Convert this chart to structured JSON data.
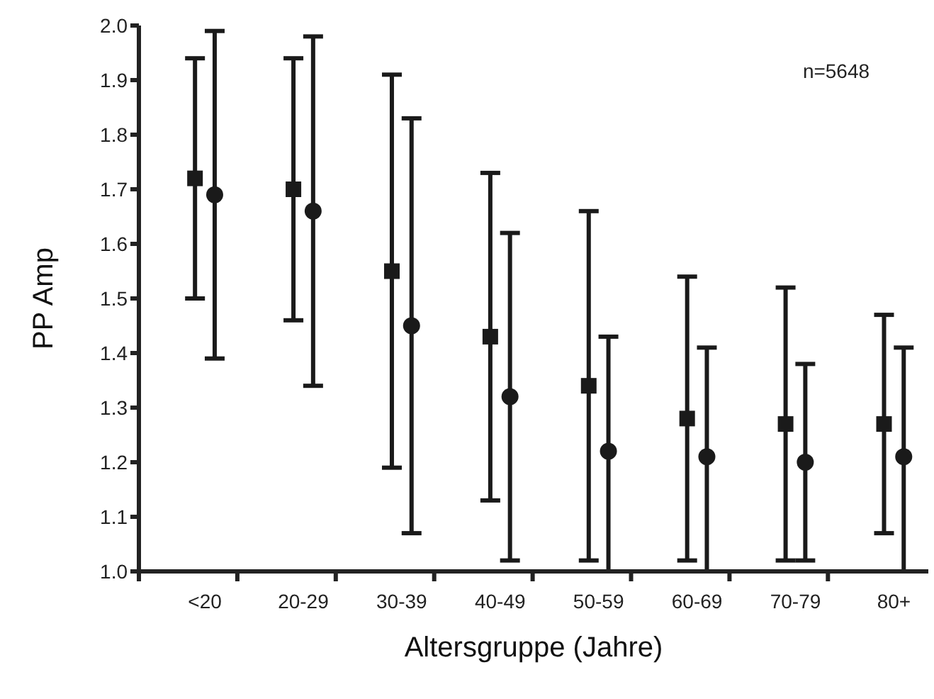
{
  "chart_data": {
    "type": "scatter",
    "xlabel": "Altersgruppe (Jahre)",
    "ylabel": "PP Amp",
    "annotations": [
      "n=5648"
    ],
    "categories": [
      "<20",
      "20-29",
      "30-39",
      "40-49",
      "50-59",
      "60-69",
      "70-79",
      "80+"
    ],
    "series": [
      {
        "color": "#1a1a1a",
        "marker": "square",
        "values": [
          1.72,
          1.7,
          1.55,
          1.43,
          1.34,
          1.28,
          1.27,
          1.27
        ],
        "errors": [
          [
            1.5,
            1.94
          ],
          [
            1.46,
            1.94
          ],
          [
            1.19,
            1.91
          ],
          [
            1.13,
            1.73
          ],
          [
            1.02,
            1.66
          ],
          [
            1.02,
            1.54
          ],
          [
            1.02,
            1.52
          ],
          [
            1.07,
            1.47
          ]
        ]
      },
      {
        "color": "#1a1a1a",
        "marker": "circle",
        "values": [
          1.69,
          1.66,
          1.45,
          1.32,
          1.22,
          1.21,
          1.2,
          1.21
        ],
        "errors": [
          [
            1.39,
            1.99
          ],
          [
            1.34,
            1.98
          ],
          [
            1.07,
            1.83
          ],
          [
            1.02,
            1.62
          ],
          [
            1.0,
            1.43
          ],
          [
            1.0,
            1.41
          ],
          [
            1.02,
            1.38
          ],
          [
            1.0,
            1.41
          ]
        ]
      }
    ],
    "ylim": [
      1.0,
      2.0
    ],
    "yticks": [
      {
        "value": 1.0,
        "label": "1.0"
      },
      1.1,
      1.2,
      1.3,
      1.4,
      1.5,
      1.6,
      1.7,
      1.8,
      1.9,
      {
        "value": 2.0,
        "label": "2.0"
      }
    ],
    "grid": false
  }
}
